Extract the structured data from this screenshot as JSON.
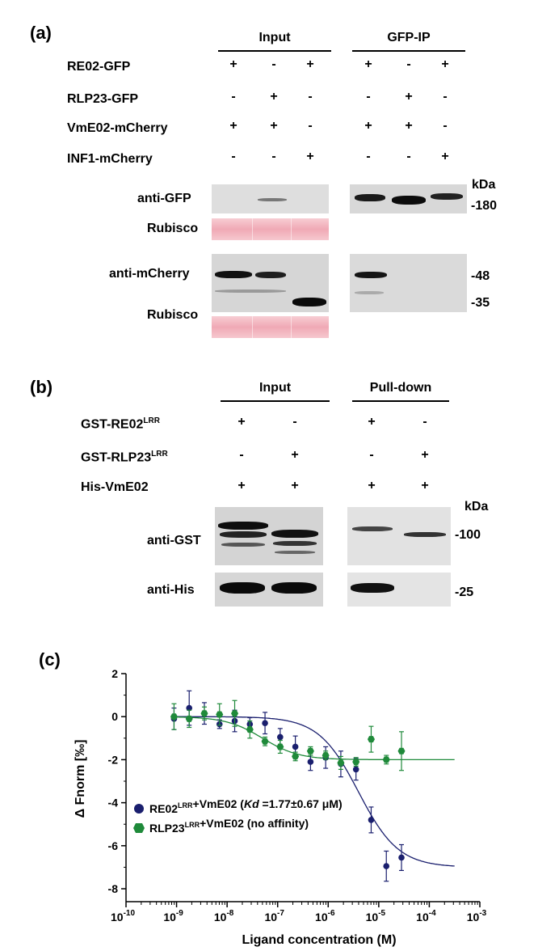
{
  "panel_a": {
    "label": "(a)",
    "input_header": "Input",
    "ip_header": "GFP-IP",
    "rows": [
      {
        "name": "RE02-GFP",
        "input": [
          "+",
          "-",
          "+"
        ],
        "ip": [
          "+",
          "-",
          "+"
        ]
      },
      {
        "name": "RLP23-GFP",
        "input": [
          "-",
          "+",
          "-"
        ],
        "ip": [
          "-",
          "+",
          "-"
        ]
      },
      {
        "name": "VmE02-mCherry",
        "input": [
          "+",
          "+",
          "-"
        ],
        "ip": [
          "+",
          "+",
          "-"
        ]
      },
      {
        "name": "INF1-mCherry",
        "input": [
          "-",
          "-",
          "+"
        ],
        "ip": [
          "-",
          "-",
          "+"
        ]
      }
    ],
    "kda": "kDa",
    "blot_labels": {
      "anti_gfp": "anti-GFP",
      "rubisco1": "Rubisco",
      "anti_mcherry": "anti-mCherry",
      "rubisco2": "Rubisco"
    },
    "markers": {
      "m180": "-180",
      "m48": "-48",
      "m35": "-35"
    }
  },
  "panel_b": {
    "label": "(b)",
    "input_header": "Input",
    "pd_header": "Pull-down",
    "rows": [
      {
        "name": "GST-RE02",
        "sup": "LRR",
        "input": [
          "+",
          "-"
        ],
        "pd": [
          "+",
          "-"
        ]
      },
      {
        "name": "GST-RLP23",
        "sup": "LRR",
        "input": [
          "-",
          "+"
        ],
        "pd": [
          "-",
          "+"
        ]
      },
      {
        "name": "His-VmE02",
        "sup": "",
        "input": [
          "+",
          "+"
        ],
        "pd": [
          "+",
          "+"
        ]
      }
    ],
    "kda": "kDa",
    "blot_labels": {
      "anti_gst": "anti-GST",
      "anti_his": "anti-His"
    },
    "markers": {
      "m100": "-100",
      "m25": "-25"
    }
  },
  "panel_c": {
    "label": "(c)",
    "chart_data": {
      "type": "scatter",
      "xlabel": "Ligand concentration (M)",
      "ylabel": "Δ Fnorm [‰]",
      "xscale": "log",
      "xlim": [
        -10,
        -3
      ],
      "ylim": [
        -8.6,
        2
      ],
      "xticks": [
        -10,
        -9,
        -8,
        -7,
        -6,
        -5,
        -4,
        -3
      ],
      "yticks": [
        2,
        0,
        -2,
        -4,
        -6,
        -8
      ],
      "series": [
        {
          "name": "RE02LRR+VmE02",
          "legend": {
            "prefix": "RE02",
            "sup": "LRR",
            "mid": "+VmE02 (",
            "kd": "Kd",
            "suffix": " =1.77±0.67 μM)"
          },
          "color": "#1a1f6e",
          "log_x": [
            -9.05,
            -8.75,
            -8.45,
            -8.15,
            -7.85,
            -7.55,
            -7.25,
            -6.95,
            -6.65,
            -6.35,
            -6.05,
            -5.75,
            -5.45,
            -5.15,
            -4.85,
            -4.55
          ],
          "y": [
            -0.1,
            0.4,
            0.15,
            -0.35,
            -0.2,
            -0.35,
            -0.3,
            -0.95,
            -1.4,
            -2.1,
            -1.9,
            -2.2,
            -2.45,
            -4.8,
            -6.95,
            -6.55
          ],
          "err": [
            0.5,
            0.8,
            0.5,
            0.2,
            0.5,
            0.3,
            0.5,
            0.4,
            0.5,
            0.4,
            0.5,
            0.6,
            0.5,
            0.6,
            0.7,
            0.6
          ],
          "fit": {
            "kind": "sigmoid",
            "top": 0,
            "bottom": -7,
            "log_ec50": -5.4,
            "hill": 1.1
          }
        },
        {
          "name": "RLP23LRR+VmE02 (no affinity)",
          "legend": {
            "prefix": "RLP23",
            "sup": "LRR",
            "mid": "+VmE02 (no affinity)",
            "kd": "",
            "suffix": ""
          },
          "color": "#1f8a3a",
          "log_x": [
            -9.05,
            -8.75,
            -8.45,
            -8.15,
            -7.85,
            -7.55,
            -7.25,
            -6.95,
            -6.65,
            -6.35,
            -6.05,
            -5.75,
            -5.45,
            -5.15,
            -4.85,
            -4.55
          ],
          "y": [
            0.0,
            -0.1,
            0.15,
            0.1,
            0.15,
            -0.6,
            -1.15,
            -1.4,
            -1.85,
            -1.6,
            -1.8,
            -2.15,
            -2.1,
            -1.05,
            -2.0,
            -1.6
          ],
          "err": [
            0.6,
            0.4,
            0.3,
            0.5,
            0.6,
            0.4,
            0.2,
            0.3,
            0.2,
            0.2,
            0.2,
            0.3,
            0.2,
            0.6,
            0.2,
            0.9
          ],
          "fit": {
            "kind": "sigmoid",
            "top": 0,
            "bottom": -2.0,
            "log_ec50": -7.3,
            "hill": 1.2
          }
        }
      ]
    }
  }
}
